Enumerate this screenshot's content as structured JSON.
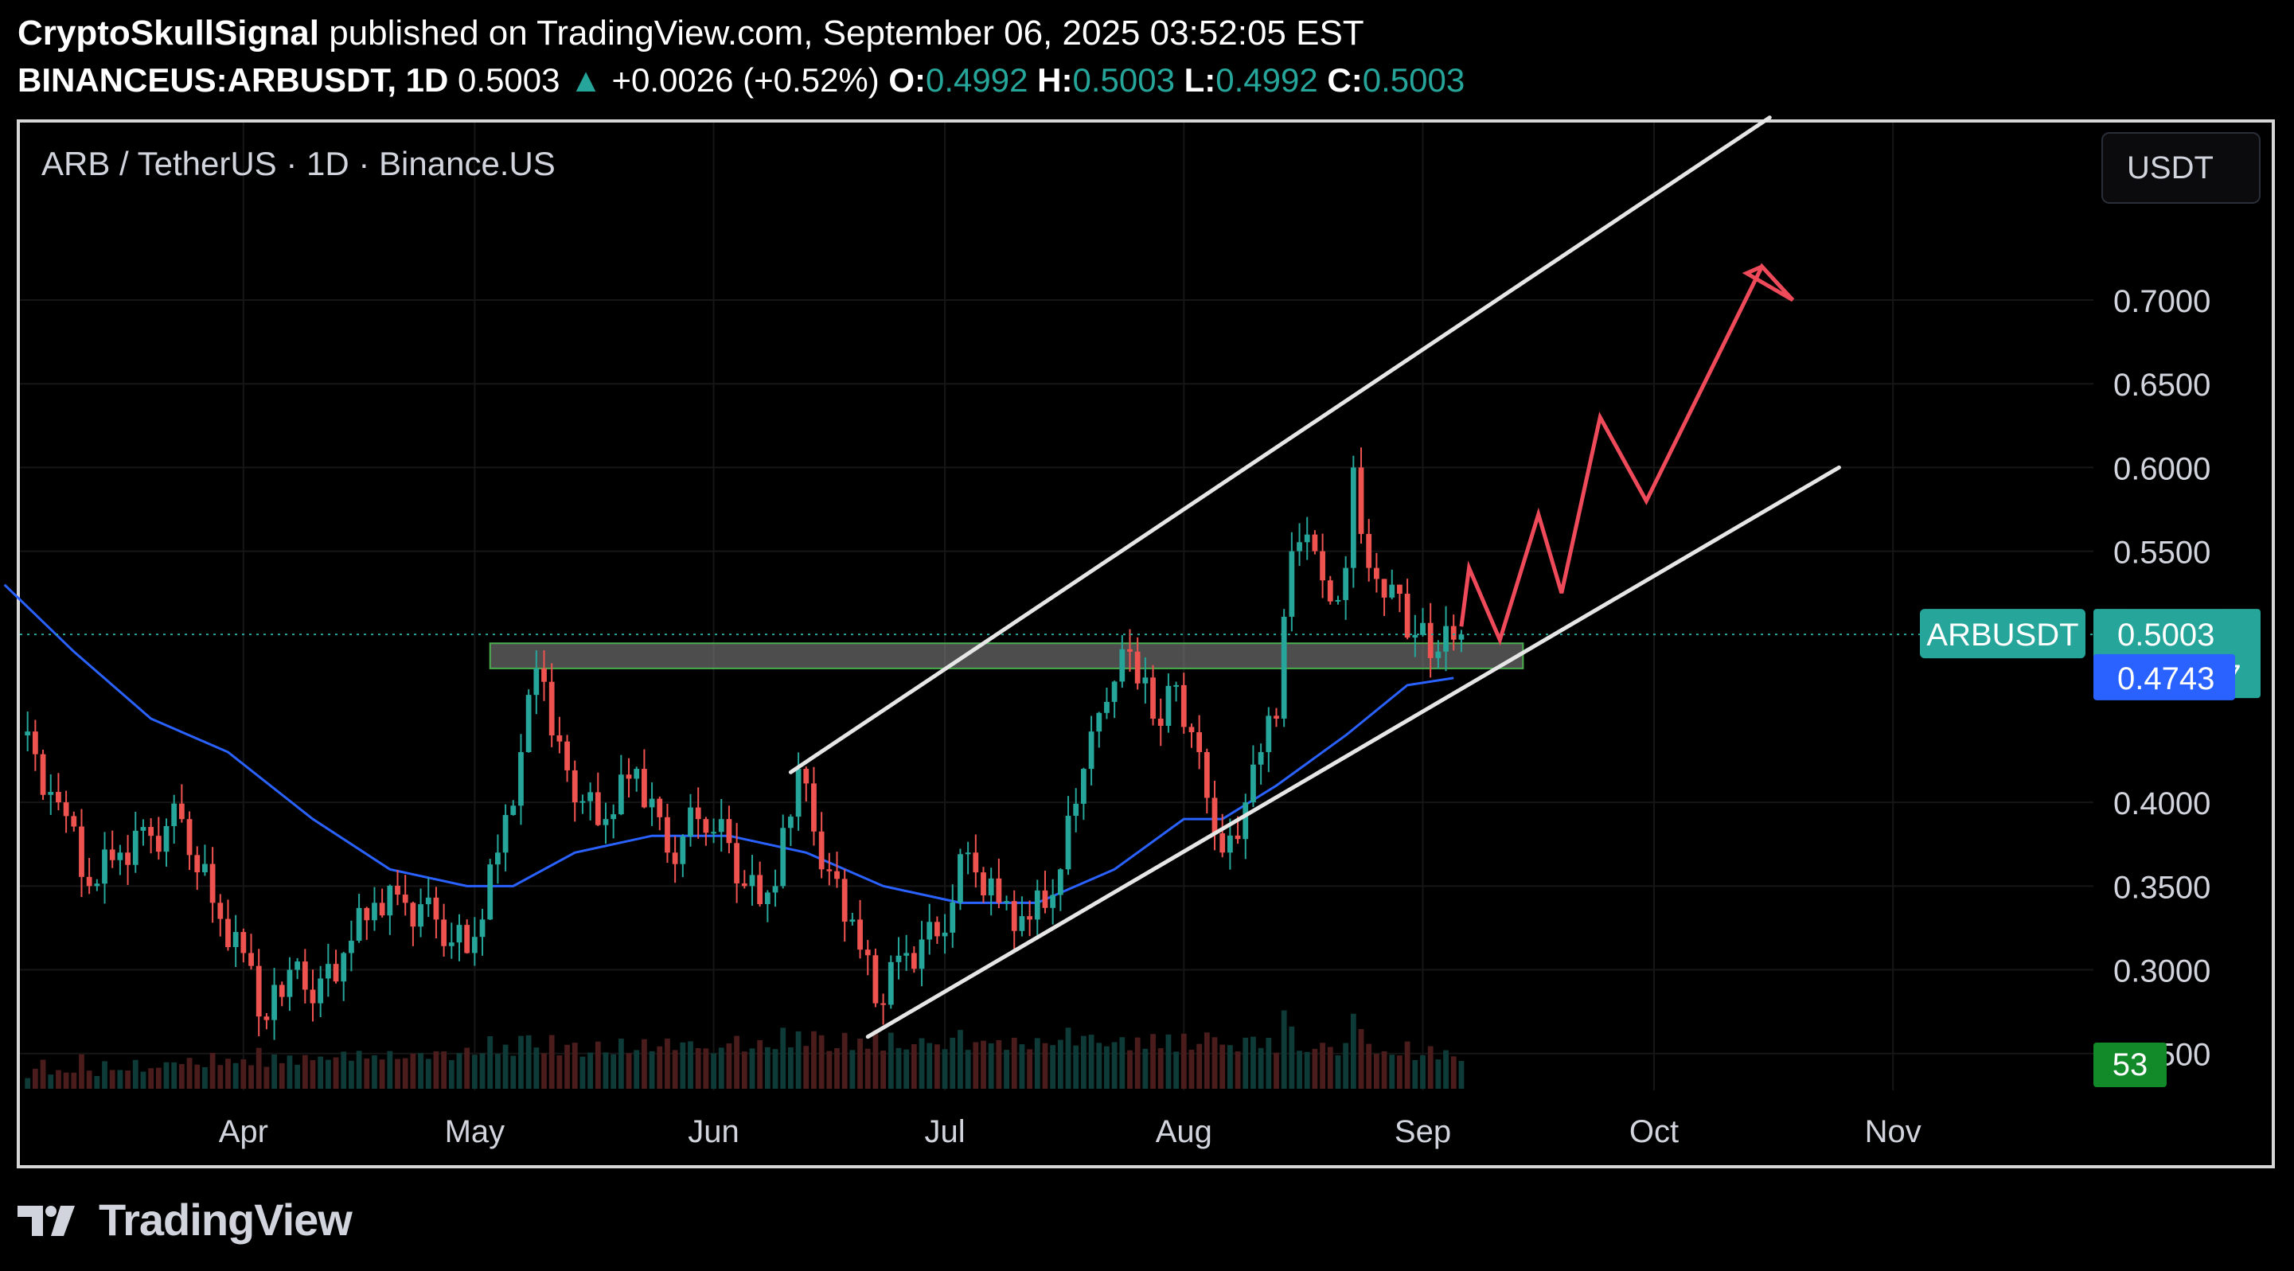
{
  "header": {
    "author": "CryptoSkullSignal",
    "published": "published on TradingView.com, September 06, 2025 03:52:05 EST",
    "symbol": "BINANCEUS:ARBUSDT, 1D",
    "last": "0.5003",
    "change_arrow": "▲",
    "change": "+0.0026 (+0.52%)",
    "o_label": "O:",
    "o": "0.4992",
    "h_label": "H:",
    "h": "0.5003",
    "l_label": "L:",
    "l": "0.4992",
    "c_label": "C:",
    "c": "0.5003"
  },
  "pane": {
    "pair_title": "ARB / TetherUS · 1D · Binance.US",
    "currency_button": "USDT"
  },
  "footer": {
    "brand": "TradingView"
  },
  "colors": {
    "up": "#26a69a",
    "down": "#ef5350",
    "ma": "#2962ff",
    "channel": "#e6e6e6",
    "projection": "#ef4a5a",
    "zone": "#4caf50",
    "price_badge": "#26a69a",
    "ma_badge": "#2962ff",
    "vol_badge": "#138a2a"
  },
  "chart_data": {
    "type": "line",
    "chart_style": "candlestick",
    "y_scale": "linear",
    "grid": true,
    "ylim": [
      0.228,
      0.806
    ],
    "y_ticks": [
      "0.7000",
      "0.6500",
      "0.6000",
      "0.5500",
      "0.4000",
      "0.3500",
      "0.3000",
      "0.2500"
    ],
    "y_tick_values": [
      0.7,
      0.65,
      0.6,
      0.55,
      0.4,
      0.35,
      0.3,
      0.25
    ],
    "x_ticks": [
      "Apr",
      "May",
      "Jun",
      "Jul",
      "Aug",
      "Sep",
      "Oct",
      "Nov"
    ],
    "x_tick_dates": [
      "2025-04-01",
      "2025-05-01",
      "2025-06-01",
      "2025-07-01",
      "2025-08-01",
      "2025-09-01",
      "2025-10-01",
      "2025-11-01"
    ],
    "x_range": [
      "2025-03-03",
      "2025-11-27"
    ],
    "price_labels": {
      "symbol": "ARBUSDT",
      "last": "0.5003",
      "countdown": "15:07:57",
      "ma": "0.4743",
      "volume": "53"
    },
    "series": [
      {
        "kind": "close",
        "x": [
          "2025-03-03",
          "2025-03-08",
          "2025-03-12",
          "2025-03-16",
          "2025-03-20",
          "2025-03-24",
          "2025-03-28",
          "2025-04-01",
          "2025-04-04",
          "2025-04-07",
          "2025-04-10",
          "2025-04-14",
          "2025-04-18",
          "2025-04-22",
          "2025-04-26",
          "2025-04-30",
          "2025-05-04",
          "2025-05-07",
          "2025-05-09",
          "2025-05-11",
          "2025-05-14",
          "2025-05-18",
          "2025-05-22",
          "2025-05-26",
          "2025-05-30",
          "2025-06-02",
          "2025-06-05",
          "2025-06-09",
          "2025-06-12",
          "2025-06-15",
          "2025-06-19",
          "2025-06-22",
          "2025-06-26",
          "2025-06-30",
          "2025-07-04",
          "2025-07-08",
          "2025-07-12",
          "2025-07-16",
          "2025-07-19",
          "2025-07-22",
          "2025-07-25",
          "2025-07-28",
          "2025-07-31",
          "2025-08-03",
          "2025-08-06",
          "2025-08-09",
          "2025-08-11",
          "2025-08-13",
          "2025-08-15",
          "2025-08-18",
          "2025-08-20",
          "2025-08-22",
          "2025-08-23",
          "2025-08-25",
          "2025-08-28",
          "2025-08-31",
          "2025-09-03",
          "2025-09-06"
        ],
        "y": [
          0.44,
          0.4,
          0.35,
          0.37,
          0.38,
          0.39,
          0.34,
          0.31,
          0.27,
          0.3,
          0.28,
          0.31,
          0.34,
          0.34,
          0.33,
          0.31,
          0.37,
          0.43,
          0.48,
          0.44,
          0.4,
          0.39,
          0.42,
          0.37,
          0.39,
          0.39,
          0.35,
          0.35,
          0.42,
          0.36,
          0.33,
          0.28,
          0.31,
          0.32,
          0.37,
          0.34,
          0.33,
          0.36,
          0.42,
          0.46,
          0.49,
          0.45,
          0.47,
          0.43,
          0.37,
          0.4,
          0.43,
          0.45,
          0.55,
          0.55,
          0.52,
          0.54,
          0.6,
          0.54,
          0.53,
          0.5,
          0.49,
          0.5003
        ]
      },
      {
        "kind": "moving_average",
        "x": [
          "2025-03-01",
          "2025-03-10",
          "2025-03-20",
          "2025-03-30",
          "2025-04-10",
          "2025-04-20",
          "2025-04-30",
          "2025-05-06",
          "2025-05-14",
          "2025-05-24",
          "2025-06-03",
          "2025-06-13",
          "2025-06-23",
          "2025-07-03",
          "2025-07-13",
          "2025-07-23",
          "2025-08-01",
          "2025-08-06",
          "2025-08-13",
          "2025-08-22",
          "2025-08-30",
          "2025-09-05"
        ],
        "y": [
          0.53,
          0.49,
          0.45,
          0.43,
          0.39,
          0.36,
          0.35,
          0.35,
          0.37,
          0.38,
          0.38,
          0.37,
          0.35,
          0.34,
          0.34,
          0.36,
          0.39,
          0.39,
          0.41,
          0.44,
          0.47,
          0.4743
        ]
      }
    ],
    "annotations": {
      "channel_upper": {
        "x": [
          "2025-06-11",
          "2025-10-16"
        ],
        "y": [
          0.418,
          0.809
        ]
      },
      "channel_lower": {
        "x": [
          "2025-06-21",
          "2025-10-25"
        ],
        "y": [
          0.26,
          0.6
        ]
      },
      "support_zone": {
        "x": [
          "2025-05-03",
          "2025-09-14"
        ],
        "y": [
          0.48,
          0.495
        ]
      },
      "projection_path": {
        "x": [
          "2025-09-06",
          "2025-09-07",
          "2025-09-11",
          "2025-09-16",
          "2025-09-19",
          "2025-09-24",
          "2025-09-30",
          "2025-10-15",
          "2025-10-19",
          "2025-10-13",
          "2025-10-15"
        ],
        "y": [
          0.505,
          0.54,
          0.497,
          0.572,
          0.525,
          0.63,
          0.58,
          0.72,
          0.7,
          0.716,
          0.72
        ]
      }
    }
  }
}
